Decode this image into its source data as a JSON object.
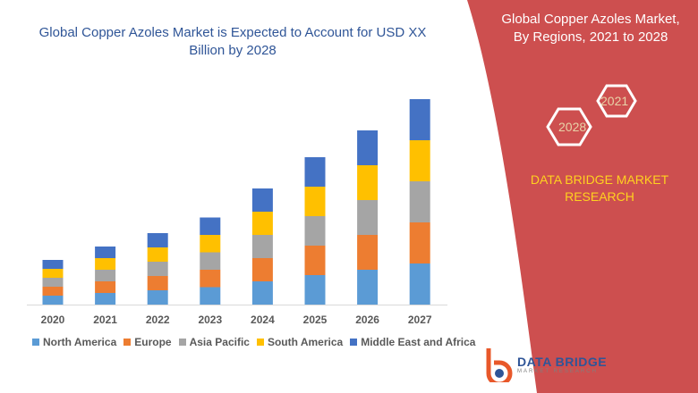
{
  "header": {
    "title": "Global Copper Azoles Market is Expected to Account for USD XX Billion by 2028"
  },
  "side_panel": {
    "title": "Global Copper Azoles Market, By Regions, 2021 to 2028",
    "hex_labels": [
      "2021",
      "2028"
    ],
    "brand_text": "DATA BRIDGE MARKET RESEARCH",
    "panel_color": "#cd4f4f"
  },
  "logo": {
    "name": "DATA BRIDGE",
    "tagline": "MARKET RESEARCH"
  },
  "chart_data": {
    "type": "bar",
    "stacked": true,
    "title": "",
    "xlabel": "",
    "ylabel": "",
    "y_axis_shown": false,
    "grid": false,
    "legend_position": "bottom",
    "categories": [
      "2020",
      "2021",
      "2022",
      "2023",
      "2024",
      "2025",
      "2026",
      "2027"
    ],
    "series": [
      {
        "name": "North America",
        "color": "#5b9bd5",
        "values": [
          10,
          13,
          16,
          19.5,
          26,
          33,
          39,
          46
        ]
      },
      {
        "name": "Europe",
        "color": "#ed7d31",
        "values": [
          10,
          13,
          16,
          19.5,
          26,
          33,
          39,
          46
        ]
      },
      {
        "name": "Asia Pacific",
        "color": "#a5a5a5",
        "values": [
          10,
          13,
          16,
          19.5,
          26,
          33,
          39,
          46
        ]
      },
      {
        "name": "South America",
        "color": "#ffc000",
        "values": [
          10,
          13,
          16,
          19.5,
          26,
          33,
          39,
          46
        ]
      },
      {
        "name": "Middle East and Africa",
        "color": "#4472c4",
        "values": [
          10,
          13,
          16,
          19.5,
          26,
          33,
          39,
          46
        ]
      }
    ]
  }
}
